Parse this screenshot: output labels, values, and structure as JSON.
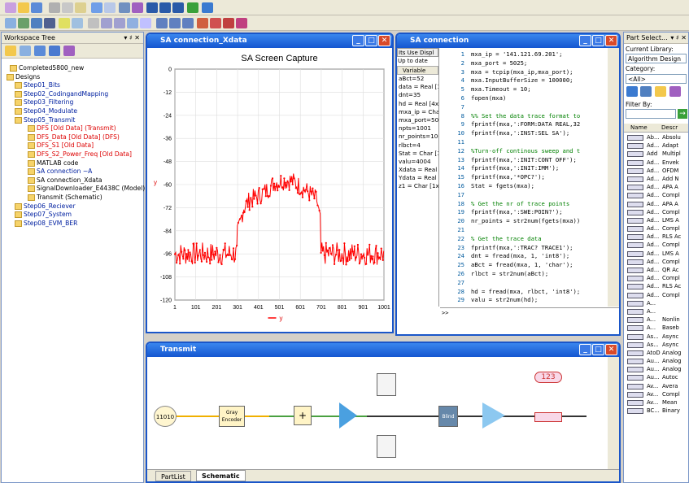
{
  "workspace": {
    "title": "Workspace Tree",
    "pin": "▾ ♯ ✕"
  },
  "tree": {
    "items": [
      {
        "label": "Completed5800_new",
        "cls": "",
        "indent": 8
      },
      {
        "label": "Designs",
        "cls": "",
        "indent": 4
      },
      {
        "label": "Step01_Bits",
        "cls": "blue",
        "indent": 14
      },
      {
        "label": "Step02_CodingandMapping",
        "cls": "blue",
        "indent": 14
      },
      {
        "label": "Step03_Filtering",
        "cls": "blue",
        "indent": 14
      },
      {
        "label": "Step04_Modulate",
        "cls": "blue",
        "indent": 14
      },
      {
        "label": "Step05_Transmit",
        "cls": "blue",
        "indent": 14
      },
      {
        "label": "DFS [Old Data] (Transmit)",
        "cls": "red",
        "indent": 30
      },
      {
        "label": "DFS_Data [Old Data] (DFS)",
        "cls": "red",
        "indent": 30
      },
      {
        "label": "DFS_S1 [Old Data]",
        "cls": "red",
        "indent": 30
      },
      {
        "label": "DFS_S2_Power_Freq [Old Data]",
        "cls": "red",
        "indent": 30
      },
      {
        "label": "MATLAB code",
        "cls": "",
        "indent": 30
      },
      {
        "label": "SA connection ~A",
        "cls": "blue",
        "indent": 30
      },
      {
        "label": "SA connection_Xdata",
        "cls": "",
        "indent": 30
      },
      {
        "label": "SignalDownloader_E4438C (Model)",
        "cls": "",
        "indent": 30
      },
      {
        "label": "Transmit (Schematic)",
        "cls": "",
        "indent": 30
      },
      {
        "label": "Step06_Reciever",
        "cls": "blue",
        "indent": 14
      },
      {
        "label": "Step07_System",
        "cls": "blue",
        "indent": 14
      },
      {
        "label": "Step08_EVM_BER",
        "cls": "blue",
        "indent": 14
      }
    ]
  },
  "plotwin": {
    "title": "SA connection_Xdata",
    "btns": [
      "_",
      "□",
      "✕"
    ]
  },
  "chart_data": {
    "type": "line",
    "title": "SA Screen Capture",
    "ylabel": "y",
    "legend": "y",
    "xlim": [
      1,
      1001
    ],
    "ylim": [
      -120,
      0
    ],
    "xticks": [
      "1",
      "101",
      "201",
      "301",
      "401",
      "501",
      "601",
      "701",
      "801",
      "901",
      "1001"
    ],
    "yticks": [
      "0",
      "-12",
      "-24",
      "-36",
      "-48",
      "-60",
      "-72",
      "-84",
      "-96",
      "-108",
      "-120"
    ],
    "series": [
      {
        "name": "y",
        "color": "#ff0000",
        "segments": [
          {
            "x": [
              1,
              300
            ],
            "y": [
              -96,
              -96
            ],
            "noise": 6
          },
          {
            "x": [
              300,
              330,
              360,
              400,
              440,
              480,
              520,
              560,
              600,
              640,
              680,
              700
            ],
            "y": [
              -86,
              -72,
              -68,
              -66,
              -63,
              -59,
              -58,
              -58,
              -61,
              -64,
              -68,
              -82
            ],
            "noise": 5
          },
          {
            "x": [
              700,
              1001
            ],
            "y": [
              -96,
              -96
            ],
            "noise": 6
          }
        ]
      }
    ]
  },
  "matlabwin": {
    "title": "SA connection",
    "btns": [
      "_",
      "□",
      "✕"
    ]
  },
  "varpanel": {
    "header": "Its Use Displ",
    "status": "Up to date",
    "col": "Variable",
    "vars": [
      "aBct=52",
      "data = Real [100",
      "dnt=35",
      "hd = Real [4x1]",
      "mxa_ip = Char [",
      "mxa_port=5025",
      "npts=1001",
      "nr_points=1001",
      "rlbct=4",
      "Stat = Char [1x2",
      "valu=4004",
      "Xdata = Real [1x",
      "Ydata = Real [1(",
      "z1 = Char [1x0]"
    ]
  },
  "code": {
    "lines": [
      {
        "n": "1",
        "t": "mxa_ip = '141.121.69.201';"
      },
      {
        "n": "2",
        "t": "mxa_port = 5025;"
      },
      {
        "n": "3",
        "t": "mxa = tcpip(mxa_ip,mxa_port);"
      },
      {
        "n": "4",
        "t": "mxa.InputBufferSize = 100000;"
      },
      {
        "n": "5",
        "t": "mxa.Timeout = 10;"
      },
      {
        "n": "6",
        "t": "fopen(mxa)"
      },
      {
        "n": "7",
        "t": ""
      },
      {
        "n": "8",
        "t": "%% Set the data trace format to"
      },
      {
        "n": "9",
        "t": "fprintf(mxa,':FORM:DATA REAL,32"
      },
      {
        "n": "10",
        "t": "fprintf(mxa,':INST:SEL SA');"
      },
      {
        "n": "11",
        "t": ""
      },
      {
        "n": "12",
        "t": "%Turn-off continous sweep and t"
      },
      {
        "n": "13",
        "t": "fprintf(mxa,':INIT:CONT OFF');"
      },
      {
        "n": "14",
        "t": "fprintf(mxa,':INIT:IMM');"
      },
      {
        "n": "15",
        "t": "fprintf(mxa,'*OPC?');"
      },
      {
        "n": "16",
        "t": "Stat = fgets(mxa);"
      },
      {
        "n": "17",
        "t": ""
      },
      {
        "n": "18",
        "t": "% Get the nr of trace points"
      },
      {
        "n": "19",
        "t": "fprintf(mxa,':SWE:POIN?');"
      },
      {
        "n": "20",
        "t": "nr_points = str2num(fgets(mxa))"
      },
      {
        "n": "21",
        "t": ""
      },
      {
        "n": "22",
        "t": "% Get the trace data"
      },
      {
        "n": "23",
        "t": "fprintf(mxa,':TRAC? TRACE1');"
      },
      {
        "n": "24",
        "t": "dnt = fread(mxa, 1, 'int8');"
      },
      {
        "n": "25",
        "t": "aBct = fread(mxa, 1, 'char');"
      },
      {
        "n": "26",
        "t": "rlbct = str2num(aBct);"
      },
      {
        "n": "27",
        "t": ""
      },
      {
        "n": "28",
        "t": "hd = fread(mxa, rlbct, 'int8');"
      },
      {
        "n": "29",
        "t": "valu = str2num(hd);"
      }
    ]
  },
  "console": {
    "prompt": ">>"
  },
  "partsel": {
    "title": "Part Select...",
    "pin": "▾ ♯ ✕",
    "curlib_label": "Current Library:",
    "curlib": "Algorithm Design",
    "cat_label": "Category:",
    "cat": "<All>",
    "filter_label": "Filter By:",
    "col_name": "Name",
    "col_desc": "Descr"
  },
  "parts": [
    {
      "n": "Ab...",
      "d": "Absolu"
    },
    {
      "n": "Ad...",
      "d": "Adapt"
    },
    {
      "n": "Add",
      "d": "Multipl"
    },
    {
      "n": "Ad...",
      "d": "Envek"
    },
    {
      "n": "Ad...",
      "d": "OFDM"
    },
    {
      "n": "Ad...",
      "d": "Add N"
    },
    {
      "n": "Ad...",
      "d": "APA A"
    },
    {
      "n": "Ad...",
      "d": "Compl"
    },
    {
      "n": "Ad...",
      "d": "APA A"
    },
    {
      "n": "Ad...",
      "d": "Compl"
    },
    {
      "n": "Ad...",
      "d": "LMS A"
    },
    {
      "n": "Ad...",
      "d": "Compl"
    },
    {
      "n": "Ad...",
      "d": "RLS Ac"
    },
    {
      "n": "Ad...",
      "d": "Compl"
    },
    {
      "n": "Ad...",
      "d": "LMS A"
    },
    {
      "n": "Ad...",
      "d": "Compl"
    },
    {
      "n": "Ad...",
      "d": "QR Ac"
    },
    {
      "n": "Ad...",
      "d": "Compl"
    },
    {
      "n": "Ad...",
      "d": "RLS Ac"
    },
    {
      "n": "Ad...",
      "d": "Compl"
    },
    {
      "n": "A...",
      "d": ""
    },
    {
      "n": "A...",
      "d": ""
    },
    {
      "n": "A...",
      "d": "Nonlin"
    },
    {
      "n": "A...",
      "d": "Baseb"
    },
    {
      "n": "As...",
      "d": "Async"
    },
    {
      "n": "As...",
      "d": "Async"
    },
    {
      "n": "AtoD",
      "d": "Analog"
    },
    {
      "n": "Au...",
      "d": "Analog"
    },
    {
      "n": "Au...",
      "d": "Analog"
    },
    {
      "n": "Au...",
      "d": "Autoc"
    },
    {
      "n": "Av...",
      "d": "Avera"
    },
    {
      "n": "Av...",
      "d": "Compl"
    },
    {
      "n": "Av...",
      "d": "Mean"
    },
    {
      "n": "BC...",
      "d": "Binary"
    }
  ],
  "transmit": {
    "title": "Transmit",
    "btns": [
      "_",
      "□",
      "✕"
    ],
    "blk1": "11010",
    "blk2": "Gray\nEncoder",
    "blk3": "Blind",
    "blk4": "Amplifier",
    "val": "123"
  },
  "tabs": {
    "partlist": "PartList",
    "schematic": "Schematic"
  }
}
